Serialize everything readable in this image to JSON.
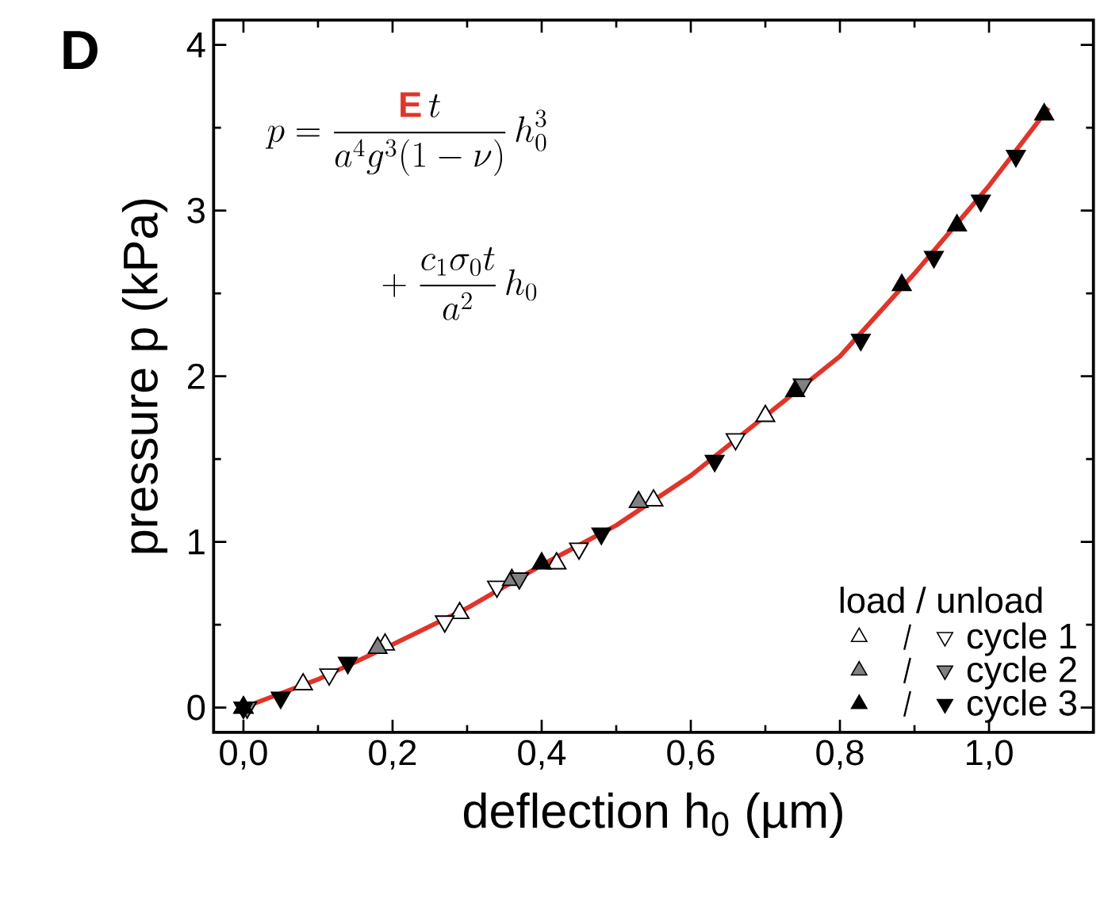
{
  "chart_data": {
    "type": "scatter",
    "xlabel": "deflection h$_{0}$ (µm)",
    "ylabel": "pressure p (kPa)",
    "legend_title": "load / unload",
    "legend": "bottom right",
    "grid": false,
    "annotations": [
      "D",
      "p = \\frac{{\\color[HTML]{E0352B}\\mathbf{E}}\\,t}{a^{4}g^{3}(1-\\nu)}\\,h_{0}^{3}",
      "+\\ \\frac{c_{1}\\sigma_{0}t}{a^{2}}\\,h_{0}"
    ],
    "xlim": [
      -0.04,
      1.14
    ],
    "ylim": [
      -0.15,
      4.15
    ],
    "xticks": [
      {
        "value": 0,
        "label": "0,0"
      },
      {
        "value": 0.2,
        "label": "0,2"
      },
      {
        "value": 0.4,
        "label": "0,4"
      },
      {
        "value": 0.6,
        "label": "0,6"
      },
      {
        "value": 0.8,
        "label": "0,8"
      },
      {
        "value": 1.0,
        "label": "1,0"
      }
    ],
    "yticks": [
      0,
      1,
      2,
      3,
      4
    ],
    "series": [
      {
        "type": "line",
        "color": "#e0352b",
        "line_style": "solid",
        "marker": "none",
        "x": [
          0,
          0.1,
          0.2,
          0.3,
          0.4,
          0.5,
          0.6,
          0.7,
          0.8,
          0.9,
          1.0,
          1.08
        ],
        "values": [
          0,
          0.17,
          0.38,
          0.6,
          0.86,
          1.1,
          1.4,
          1.76,
          2.12,
          2.62,
          3.15,
          3.62
        ]
      },
      {
        "type": "scatter",
        "color": "#ffffff",
        "marker": "triangle",
        "x": [
          0,
          0.08,
          0.19,
          0.29,
          0.42,
          0.55,
          0.7
        ],
        "values": [
          0,
          0.14,
          0.38,
          0.57,
          0.87,
          1.25,
          1.76
        ]
      },
      {
        "type": "scatter",
        "name": "cycle 1",
        "color": "#ffffff",
        "marker": "triangle down",
        "x": [
          0,
          0.115,
          0.27,
          0.34,
          0.45,
          0.66
        ],
        "values": [
          0,
          0.2,
          0.52,
          0.73,
          0.96,
          1.62
        ]
      },
      {
        "type": "scatter",
        "color": "#808080",
        "marker": "triangle",
        "x": [
          0,
          0.18,
          0.36,
          0.53
        ],
        "values": [
          0,
          0.36,
          0.77,
          1.24
        ]
      },
      {
        "type": "scatter",
        "name": "cycle 2",
        "color": "#808080",
        "marker": "triangle down",
        "x": [
          0.005,
          0.37,
          0.75
        ],
        "values": [
          0,
          0.78,
          1.95
        ]
      },
      {
        "type": "scatter",
        "color": "#000000",
        "marker": "triangle",
        "x": [
          0,
          0.4,
          0.74,
          0.883,
          0.957,
          1.074
        ],
        "values": [
          0,
          0.87,
          1.91,
          2.55,
          2.91,
          3.58
        ]
      },
      {
        "type": "scatter",
        "name": "cycle 3",
        "color": "#000000",
        "marker": "triangle down",
        "x": [
          0,
          0.05,
          0.14,
          0.48,
          0.632,
          0.828,
          0.926,
          0.989,
          1.036
        ],
        "values": [
          0,
          0.06,
          0.27,
          1.05,
          1.49,
          2.22,
          2.72,
          3.06,
          3.33
        ]
      }
    ]
  }
}
